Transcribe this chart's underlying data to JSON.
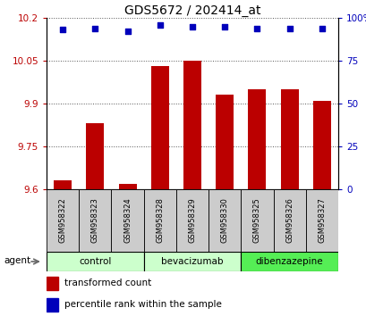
{
  "title": "GDS5672 / 202414_at",
  "samples": [
    "GSM958322",
    "GSM958323",
    "GSM958324",
    "GSM958328",
    "GSM958329",
    "GSM958330",
    "GSM958325",
    "GSM958326",
    "GSM958327"
  ],
  "bar_values": [
    9.63,
    9.83,
    9.62,
    10.03,
    10.05,
    9.93,
    9.95,
    9.95,
    9.91
  ],
  "percentile_values": [
    93,
    94,
    92,
    96,
    95,
    95,
    94,
    94,
    94
  ],
  "bar_color": "#bb0000",
  "dot_color": "#0000bb",
  "ylim_left": [
    9.6,
    10.2
  ],
  "ylim_right": [
    0,
    100
  ],
  "yticks_left": [
    9.6,
    9.75,
    9.9,
    10.05,
    10.2
  ],
  "yticks_right": [
    0,
    25,
    50,
    75,
    100
  ],
  "ytick_labels_left": [
    "9.6",
    "9.75",
    "9.9",
    "10.05",
    "10.2"
  ],
  "ytick_labels_right": [
    "0",
    "25",
    "50",
    "75",
    "100%"
  ],
  "groups": [
    {
      "label": "control",
      "start": 0,
      "end": 3,
      "color": "#ccffcc"
    },
    {
      "label": "bevacizumab",
      "start": 3,
      "end": 6,
      "color": "#ccffcc"
    },
    {
      "label": "dibenzazepine",
      "start": 6,
      "end": 9,
      "color": "#55ee55"
    }
  ],
  "agent_label": "agent",
  "legend_bar_label": "transformed count",
  "legend_dot_label": "percentile rank within the sample",
  "grid_color": "#555555",
  "bar_width": 0.55,
  "box_color": "#cccccc",
  "fig_width": 4.1,
  "fig_height": 3.54,
  "dpi": 100
}
